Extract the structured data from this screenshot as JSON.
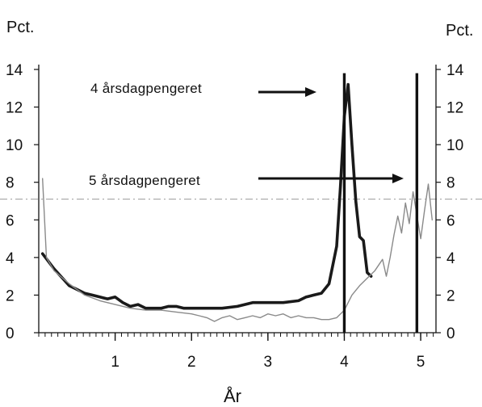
{
  "chart_data": {
    "type": "line",
    "title": "",
    "xlabel": "År",
    "ylabel_left": "Pct.",
    "ylabel_right": "Pct.",
    "xlim": [
      0,
      5.2
    ],
    "ylim": [
      0,
      14
    ],
    "x_ticks": [
      1,
      2,
      3,
      4,
      5
    ],
    "y_ticks": [
      0,
      2,
      4,
      6,
      8,
      10,
      12,
      14
    ],
    "grid": false,
    "reference_line_y": 7.1,
    "annotations": [
      {
        "text": "4 årsdagpengeret",
        "points_to_x": 4.0,
        "points_to_y": 12.8
      },
      {
        "text": "5 årsdagpengeret",
        "points_to_x": 4.95,
        "points_to_y": 8.2
      }
    ],
    "vertical_markers": [
      4.0,
      4.95
    ],
    "series": [
      {
        "style": "thick-dark",
        "color": "#1a1a1a",
        "x": [
          0.05,
          0.2,
          0.4,
          0.5,
          0.6,
          0.7,
          0.8,
          0.9,
          1.0,
          1.1,
          1.2,
          1.3,
          1.4,
          1.5,
          1.6,
          1.7,
          1.8,
          1.9,
          2.0,
          2.2,
          2.4,
          2.6,
          2.8,
          3.0,
          3.2,
          3.4,
          3.5,
          3.6,
          3.7,
          3.8,
          3.9,
          3.95,
          4.0,
          4.05,
          4.1,
          4.15,
          4.2,
          4.25,
          4.3,
          4.35
        ],
        "y": [
          4.2,
          3.4,
          2.5,
          2.3,
          2.1,
          2.0,
          1.9,
          1.8,
          1.9,
          1.6,
          1.4,
          1.5,
          1.3,
          1.3,
          1.3,
          1.4,
          1.4,
          1.3,
          1.3,
          1.3,
          1.3,
          1.4,
          1.6,
          1.6,
          1.6,
          1.7,
          1.9,
          2.0,
          2.1,
          2.6,
          4.6,
          7.8,
          11.5,
          13.2,
          10.0,
          7.0,
          5.1,
          4.9,
          3.2,
          3.0
        ]
      },
      {
        "style": "thin-gray",
        "color": "#8a8a8a",
        "x": [
          0.05,
          0.1,
          0.2,
          0.4,
          0.6,
          0.8,
          1.0,
          1.2,
          1.4,
          1.6,
          1.8,
          2.0,
          2.1,
          2.2,
          2.3,
          2.4,
          2.5,
          2.6,
          2.7,
          2.8,
          2.9,
          3.0,
          3.1,
          3.2,
          3.3,
          3.4,
          3.5,
          3.6,
          3.7,
          3.8,
          3.9,
          4.0,
          4.1,
          4.2,
          4.3,
          4.4,
          4.5,
          4.55,
          4.6,
          4.65,
          4.7,
          4.75,
          4.8,
          4.85,
          4.9,
          5.0,
          5.05,
          5.1,
          5.15
        ],
        "y": [
          8.2,
          4.0,
          3.3,
          2.6,
          2.0,
          1.7,
          1.5,
          1.3,
          1.2,
          1.2,
          1.1,
          1.0,
          0.9,
          0.8,
          0.6,
          0.8,
          0.9,
          0.7,
          0.8,
          0.9,
          0.8,
          1.0,
          0.9,
          1.0,
          0.8,
          0.9,
          0.8,
          0.8,
          0.7,
          0.7,
          0.8,
          1.2,
          2.0,
          2.5,
          2.9,
          3.3,
          3.9,
          3.0,
          4.0,
          5.2,
          6.2,
          5.3,
          6.9,
          5.8,
          7.5,
          5.0,
          6.5,
          7.9,
          6.0
        ]
      }
    ]
  }
}
